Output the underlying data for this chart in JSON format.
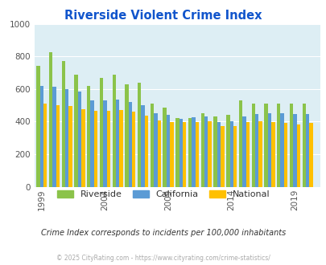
{
  "title": "Riverside Violent Crime Index",
  "title_color": "#1155cc",
  "subtitle": "Crime Index corresponds to incidents per 100,000 inhabitants",
  "footer": "© 2025 CityRating.com - https://www.cityrating.com/crime-statistics/",
  "years": [
    1999,
    2000,
    2001,
    2002,
    2003,
    2004,
    2005,
    2006,
    2007,
    2008,
    2009,
    2010,
    2011,
    2012,
    2013,
    2014,
    2015,
    2016,
    2017,
    2018,
    2019,
    2020
  ],
  "riverside": [
    740,
    825,
    770,
    690,
    620,
    670,
    690,
    630,
    640,
    510,
    485,
    420,
    420,
    450,
    430,
    440,
    530,
    510,
    510,
    510,
    510,
    510
  ],
  "california": [
    620,
    615,
    600,
    585,
    530,
    530,
    535,
    520,
    500,
    450,
    440,
    415,
    425,
    430,
    395,
    400,
    430,
    445,
    450,
    450,
    445,
    445
  ],
  "national": [
    510,
    500,
    495,
    475,
    465,
    465,
    470,
    460,
    435,
    405,
    395,
    395,
    395,
    400,
    375,
    375,
    395,
    400,
    395,
    390,
    385,
    390
  ],
  "bar_colors": {
    "riverside": "#8bc34a",
    "california": "#5b9bd5",
    "national": "#ffc000"
  },
  "bg_color": "#ddeef4",
  "ylim": [
    0,
    1000
  ],
  "yticks": [
    0,
    200,
    400,
    600,
    800,
    1000
  ],
  "xtick_years": [
    1999,
    2004,
    2009,
    2014,
    2019
  ],
  "bar_width": 0.28,
  "legend_labels": [
    "Riverside",
    "California",
    "National"
  ]
}
